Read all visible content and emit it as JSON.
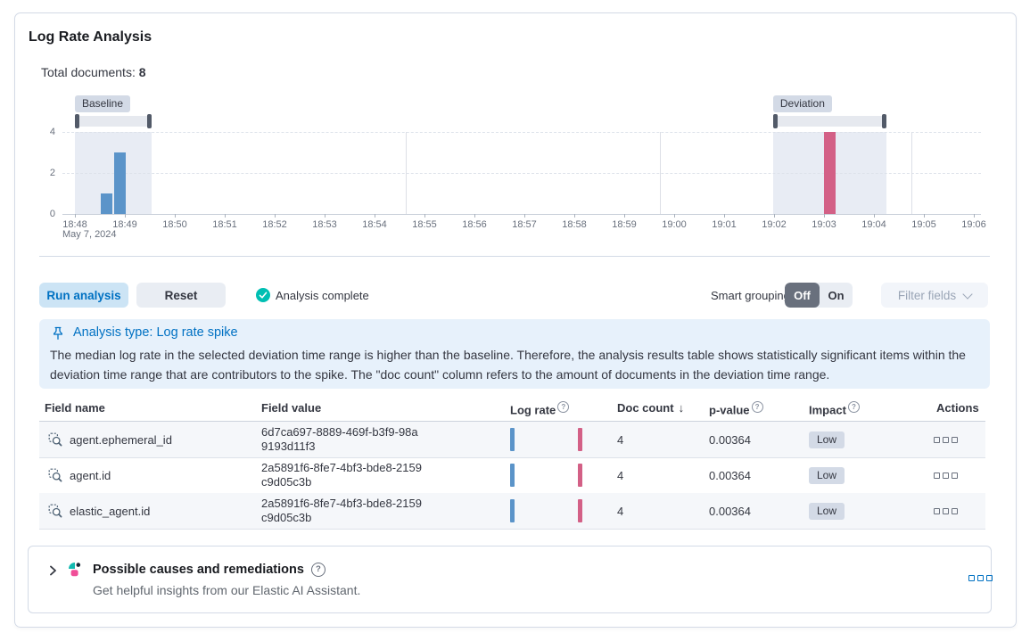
{
  "app": {
    "title": "Log Rate Analysis"
  },
  "summary": {
    "total_documents_label": "Total documents:",
    "total_documents_value": "8"
  },
  "chart_data": {
    "type": "bar",
    "title": "Document count histogram with baseline and deviation time range selection",
    "x_ticks": [
      "18:48",
      "18:49",
      "18:50",
      "18:51",
      "18:52",
      "18:53",
      "18:54",
      "18:55",
      "18:56",
      "18:57",
      "18:58",
      "18:59",
      "19:00",
      "19:01",
      "19:02",
      "19:03",
      "19:04",
      "19:05",
      "19:06"
    ],
    "x_date_label": "May 7, 2024",
    "y_ticks": [
      0,
      2,
      4
    ],
    "ylim": [
      0,
      4
    ],
    "baseline": {
      "label": "Baseline",
      "start_min": 0.0,
      "end_min": 1.54
    },
    "deviation": {
      "label": "Deviation",
      "start_min": 13.98,
      "end_min": 16.25
    },
    "bars": [
      {
        "time": "18:48:35",
        "t_min": 0.63,
        "value": 1,
        "series": "baseline"
      },
      {
        "time": "18:48:50",
        "t_min": 0.9,
        "value": 3,
        "series": "baseline"
      },
      {
        "time": "19:03:05",
        "t_min": 15.12,
        "value": 4,
        "series": "deviation"
      }
    ],
    "colors": {
      "baseline_bar": "#5b94c9",
      "deviation_bar": "#d36086",
      "brush_region": "#e8ecf4"
    }
  },
  "toolbar": {
    "run_analysis": "Run analysis",
    "reset": "Reset",
    "status": "Analysis complete",
    "smart_grouping_label": "Smart grouping",
    "group_off": "Off",
    "group_on": "On",
    "filter_fields": "Filter fields"
  },
  "callout": {
    "title": "Analysis type: Log rate spike",
    "body": "The median log rate in the selected deviation time range is higher than the baseline. Therefore, the analysis results table shows statistically significant items within the deviation time range that are contributors to the spike. The \"doc count\" column refers to the amount of documents in the deviation time range."
  },
  "table": {
    "headers": {
      "field_name": "Field name",
      "field_value": "Field value",
      "log_rate": "Log rate",
      "doc_count": "Doc count",
      "p_value": "p-value",
      "impact": "Impact",
      "actions": "Actions"
    },
    "sort_icon": "↓",
    "rows": [
      {
        "field_name": "agent.ephemeral_id",
        "field_value": "6d7ca697-8889-469f-b3f9-98a9193d11f3",
        "doc_count": "4",
        "p_value": "0.00364",
        "impact": "Low"
      },
      {
        "field_name": "agent.id",
        "field_value": "2a5891f6-8fe7-4bf3-bde8-2159c9d05c3b",
        "doc_count": "4",
        "p_value": "0.00364",
        "impact": "Low"
      },
      {
        "field_name": "elastic_agent.id",
        "field_value": "2a5891f6-8fe7-4bf3-bde8-2159c9d05c3b",
        "doc_count": "4",
        "p_value": "0.00364",
        "impact": "Low"
      }
    ]
  },
  "assistant": {
    "title": "Possible causes and remediations",
    "subtitle": "Get helpful insights from our Elastic AI Assistant."
  },
  "colors": {
    "primary": "#0071c2",
    "success": "#00bfb3"
  }
}
